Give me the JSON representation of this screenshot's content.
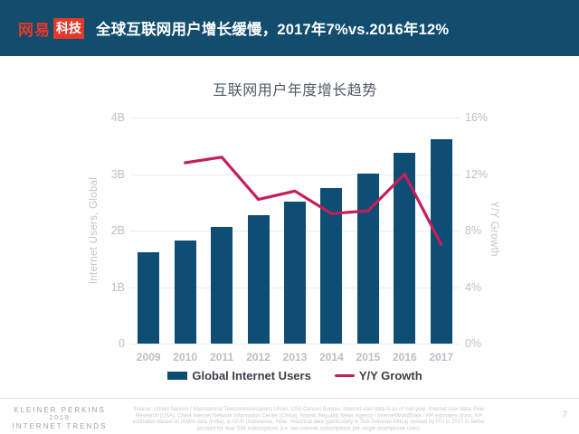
{
  "header": {
    "logo_netease": "网易",
    "logo_tech": "科技",
    "title": "全球互联网用户增长缓慢，2017年7%vs.2016年12%"
  },
  "chart_data": {
    "type": "bar",
    "title": "互联网用户年度增长趋势",
    "categories": [
      "2009",
      "2010",
      "2011",
      "2012",
      "2013",
      "2014",
      "2015",
      "2016",
      "2017"
    ],
    "series": [
      {
        "name": "Global Internet Users",
        "type": "bar",
        "axis": "left",
        "unit": "B",
        "values": [
          1.62,
          1.82,
          2.06,
          2.27,
          2.52,
          2.75,
          3.01,
          3.37,
          3.62
        ],
        "color": "#0e4e75"
      },
      {
        "name": "Y/Y Growth",
        "type": "line",
        "axis": "right",
        "unit": "%",
        "values": [
          null,
          12.8,
          13.2,
          10.2,
          10.8,
          9.2,
          9.4,
          12,
          7
        ],
        "color": "#c41e5b"
      }
    ],
    "left_axis": {
      "label": "Internet Users, Global",
      "min": 0,
      "max": 4,
      "ticks": [
        "4B",
        "3B",
        "2B",
        "1B",
        "0"
      ]
    },
    "right_axis": {
      "label": "Y/Y Growth",
      "min": 0,
      "max": 16,
      "ticks": [
        "16%",
        "12%",
        "8%",
        "4%",
        "0%"
      ]
    },
    "legend": [
      {
        "label": "Global Internet Users",
        "color": "#0e4e75",
        "type": "bar"
      },
      {
        "label": "Y/Y Growth",
        "color": "#c41e5b",
        "type": "line"
      }
    ],
    "grid": true,
    "legend_position": "bottom"
  },
  "footer": {
    "brand_line1": "KLEINER PERKINS",
    "brand_line2": "2018",
    "brand_line3": "INTERNET TRENDS",
    "source": "Source: United Nations / International Telecommunications Union, USA Census Bureau. Internet user data is as of mid-year. Internet user data: Pew Research (USA), China Internet Network Information Center (China), Islamic Republic News Agency / InternetWorldStats / KP estimates (Iran), KP estimates based on IAMAI data (India), & APJII (Indonesia). Note: Historical data (particularly in Sub-Saharan Africa) revised by ITU in 2017 to better account for dual SIM subscriptions (i.e. two internet subscriptions per single smartphone user).",
    "page_number": "7"
  }
}
